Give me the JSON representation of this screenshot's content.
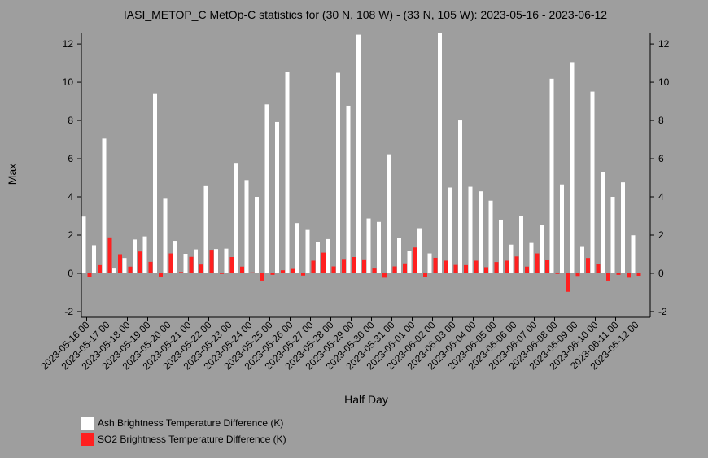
{
  "chart_data": {
    "type": "bar",
    "title": "IASI_METOP_C MetOp-C statistics for (30 N, 108 W) - (33 N, 105 W): 2023-05-16 - 2023-06-12",
    "xlabel": "Half Day",
    "ylabel": "Max",
    "ylim": [
      -2.3,
      12.6
    ],
    "yticks": [
      -2,
      0,
      2,
      4,
      6,
      8,
      10,
      12
    ],
    "grid": false,
    "legend_position": "bottom-left",
    "date_ticks": [
      "2023-05-16 00",
      "2023-05-17 00",
      "2023-05-18 00",
      "2023-05-19 00",
      "2023-05-20 00",
      "2023-05-21 00",
      "2023-05-22 00",
      "2023-05-23 00",
      "2023-05-24 00",
      "2023-05-25 00",
      "2023-05-26 00",
      "2023-05-27 00",
      "2023-05-28 00",
      "2023-05-29 00",
      "2023-05-30 00",
      "2023-05-31 00",
      "2023-06-01 00",
      "2023-06-02 00",
      "2023-06-03 00",
      "2023-06-04 00",
      "2023-06-05 00",
      "2023-06-06 00",
      "2023-06-07 00",
      "2023-06-08 00",
      "2023-06-09 00",
      "2023-06-10 00",
      "2023-06-11 00",
      "2023-06-12 00"
    ],
    "x": [
      "2023-05-16 00",
      "2023-05-16 12",
      "2023-05-17 00",
      "2023-05-17 12",
      "2023-05-18 00",
      "2023-05-18 12",
      "2023-05-19 00",
      "2023-05-19 12",
      "2023-05-20 00",
      "2023-05-20 12",
      "2023-05-21 00",
      "2023-05-21 12",
      "2023-05-22 00",
      "2023-05-22 12",
      "2023-05-23 00",
      "2023-05-23 12",
      "2023-05-24 00",
      "2023-05-24 12",
      "2023-05-25 00",
      "2023-05-25 12",
      "2023-05-26 00",
      "2023-05-26 12",
      "2023-05-27 00",
      "2023-05-27 12",
      "2023-05-28 00",
      "2023-05-28 12",
      "2023-05-29 00",
      "2023-05-29 12",
      "2023-05-30 00",
      "2023-05-30 12",
      "2023-05-31 00",
      "2023-05-31 12",
      "2023-06-01 00",
      "2023-06-01 12",
      "2023-06-02 00",
      "2023-06-02 12",
      "2023-06-03 00",
      "2023-06-03 12",
      "2023-06-04 00",
      "2023-06-04 12",
      "2023-06-05 00",
      "2023-06-05 12",
      "2023-06-06 00",
      "2023-06-06 12",
      "2023-06-07 00",
      "2023-06-07 12",
      "2023-06-08 00",
      "2023-06-08 12",
      "2023-06-09 00",
      "2023-06-09 12",
      "2023-06-10 00",
      "2023-06-10 12",
      "2023-06-11 00",
      "2023-06-11 12",
      "2023-06-12 00"
    ],
    "series": [
      {
        "name": "Ash Brightness Temperature Difference (K)",
        "color": "#ffffff",
        "values": [
          2.97,
          1.47,
          7.05,
          0.25,
          0.8,
          1.77,
          1.93,
          9.42,
          3.9,
          1.7,
          1.02,
          1.25,
          4.56,
          1.27,
          1.29,
          5.78,
          4.88,
          4.0,
          8.84,
          7.92,
          10.54,
          2.63,
          2.27,
          1.63,
          1.79,
          10.49,
          8.77,
          12.49,
          2.87,
          2.69,
          6.23,
          1.84,
          1.17,
          2.36,
          1.04,
          12.57,
          4.49,
          8.0,
          4.53,
          4.29,
          3.8,
          2.81,
          1.5,
          2.98,
          1.59,
          2.51,
          10.18,
          4.65,
          11.05,
          1.38,
          9.51,
          5.29,
          4.0,
          4.76,
          1.99
        ]
      },
      {
        "name": "SO2 Brightness Temperature Difference (K)",
        "color": "#ff2020",
        "values": [
          -0.18,
          0.43,
          1.88,
          1.0,
          0.35,
          1.14,
          0.6,
          -0.17,
          1.04,
          0.07,
          0.86,
          0.46,
          1.23,
          -0.02,
          0.85,
          0.35,
          0.05,
          -0.38,
          -0.08,
          0.16,
          0.23,
          -0.12,
          0.66,
          1.08,
          0.36,
          0.75,
          0.85,
          0.73,
          0.25,
          -0.23,
          0.36,
          0.52,
          1.35,
          -0.18,
          0.81,
          0.66,
          0.44,
          0.43,
          0.66,
          0.32,
          0.59,
          0.66,
          0.88,
          0.35,
          1.04,
          0.71,
          0.0,
          -0.97,
          -0.14,
          0.8,
          0.5,
          -0.38,
          -0.08,
          -0.23,
          -0.13
        ]
      }
    ]
  }
}
